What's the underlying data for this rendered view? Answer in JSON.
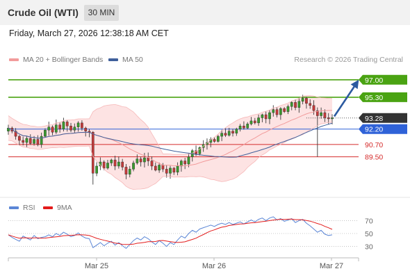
{
  "header": {
    "title": "Crude Oil (WTI)",
    "timeframe": "30 MIN"
  },
  "datetime": "Friday, March 27, 2026 12:38:18 AM CET",
  "legend": {
    "bollinger": {
      "label": "MA 20 + Bollinger Bands",
      "color": "#f29b9b"
    },
    "ma50": {
      "label": "MA 50",
      "color": "#3f5f9b"
    }
  },
  "credit": "Research © 2026 Trading Central",
  "rsi_legend": {
    "rsi": {
      "label": "RSI",
      "color": "#5b86d6"
    },
    "ma9": {
      "label": "9MA",
      "color": "#e31b1b"
    }
  },
  "chart_data": [
    {
      "type": "candlestick",
      "ylim": [
        86.5,
        98.0
      ],
      "price_levels": [
        {
          "value": 97.0,
          "label": "97.00",
          "color": "#4aa312",
          "kind": "target"
        },
        {
          "value": 95.3,
          "label": "95.30",
          "color": "#4aa312",
          "kind": "target"
        },
        {
          "value": 93.28,
          "label": "93.28",
          "color": "#333333",
          "kind": "last price"
        },
        {
          "value": 92.2,
          "label": "92.20",
          "color": "#2f62d8",
          "kind": "pivot"
        },
        {
          "value": 90.7,
          "label": "90.70",
          "color": "#d52b2b",
          "kind": "support"
        },
        {
          "value": 89.5,
          "label": "89.50",
          "color": "#d52b2b",
          "kind": "support"
        }
      ],
      "x_ticks": [
        "Mar 25",
        "Mar 26",
        "Mar 27"
      ],
      "close": [
        92.3,
        92.0,
        91.5,
        91.1,
        90.9,
        91.3,
        90.8,
        91.2,
        90.7,
        91.5,
        92.1,
        92.4,
        91.9,
        92.6,
        92.2,
        92.9,
        92.5,
        92.1,
        92.4,
        92.8,
        92.3,
        92.0,
        91.9,
        87.9,
        88.6,
        89.0,
        88.4,
        88.9,
        89.2,
        88.6,
        89.0,
        88.5,
        87.8,
        88.3,
        88.9,
        89.3,
        89.0,
        89.4,
        89.1,
        88.6,
        88.2,
        88.7,
        88.3,
        87.9,
        88.4,
        88.0,
        88.6,
        89.1,
        88.8,
        89.5,
        90.1,
        89.8,
        90.4,
        90.7,
        90.9,
        91.2,
        91.0,
        91.5,
        91.8,
        91.6,
        92.0,
        91.8,
        92.2,
        92.5,
        92.3,
        92.7,
        93.0,
        92.8,
        93.3,
        93.6,
        93.2,
        93.8,
        94.1,
        93.6,
        94.2,
        93.9,
        94.4,
        94.8,
        94.3,
        94.9,
        95.2,
        94.7,
        94.5,
        94.0,
        93.5,
        93.8,
        93.3,
        93.2,
        93.3
      ],
      "ma20_bollinger": {
        "color": "#f29b9b"
      },
      "ma50": {
        "color": "#3f5f9b"
      }
    },
    {
      "type": "line",
      "ylim": [
        22,
        78
      ],
      "y_ticks": [
        "70",
        "50",
        "30"
      ],
      "series": [
        {
          "name": "RSI",
          "color": "#5b86d6",
          "values": [
            48,
            44,
            41,
            38,
            46,
            43,
            40,
            47,
            42,
            44,
            45,
            48,
            45,
            50,
            47,
            52,
            49,
            45,
            47,
            51,
            46,
            43,
            42,
            28,
            32,
            36,
            31,
            35,
            38,
            32,
            36,
            31,
            27,
            33,
            39,
            43,
            40,
            45,
            42,
            37,
            33,
            39,
            35,
            30,
            36,
            33,
            40,
            46,
            43,
            50,
            55,
            52,
            57,
            59,
            61,
            63,
            61,
            64,
            66,
            64,
            67,
            64,
            66,
            68,
            65,
            68,
            71,
            68,
            72,
            74,
            70,
            74,
            76,
            71,
            73,
            69,
            71,
            73,
            67,
            70,
            72,
            66,
            62,
            57,
            52,
            55,
            49,
            47,
            48
          ]
        },
        {
          "name": "9MA",
          "color": "#e31b1b",
          "values": []
        }
      ]
    }
  ]
}
